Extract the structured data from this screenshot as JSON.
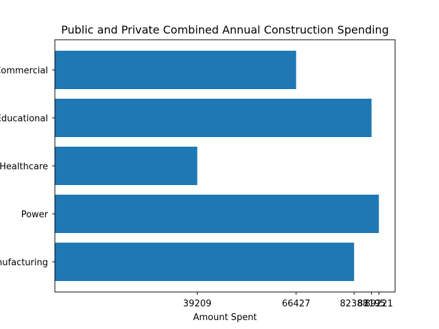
{
  "chart_data": {
    "type": "bar",
    "orientation": "horizontal",
    "title": "Public and Private Combined Annual Construction Spending",
    "xlabel": "Amount Spent",
    "ylabel": "",
    "categories": [
      "Manufacturing",
      "Power",
      "Healthcare",
      "Educational",
      "Commercial"
    ],
    "values": [
      82388,
      89221,
      39209,
      87195,
      66427
    ],
    "xticks": [
      39209,
      66427,
      82388,
      87195,
      89221
    ],
    "xtick_labels": [
      "39209",
      "66427",
      "82388",
      "87195",
      "89221"
    ],
    "xlim": [
      0,
      93682
    ],
    "grid": false,
    "bar_color": "#1f77b4"
  }
}
